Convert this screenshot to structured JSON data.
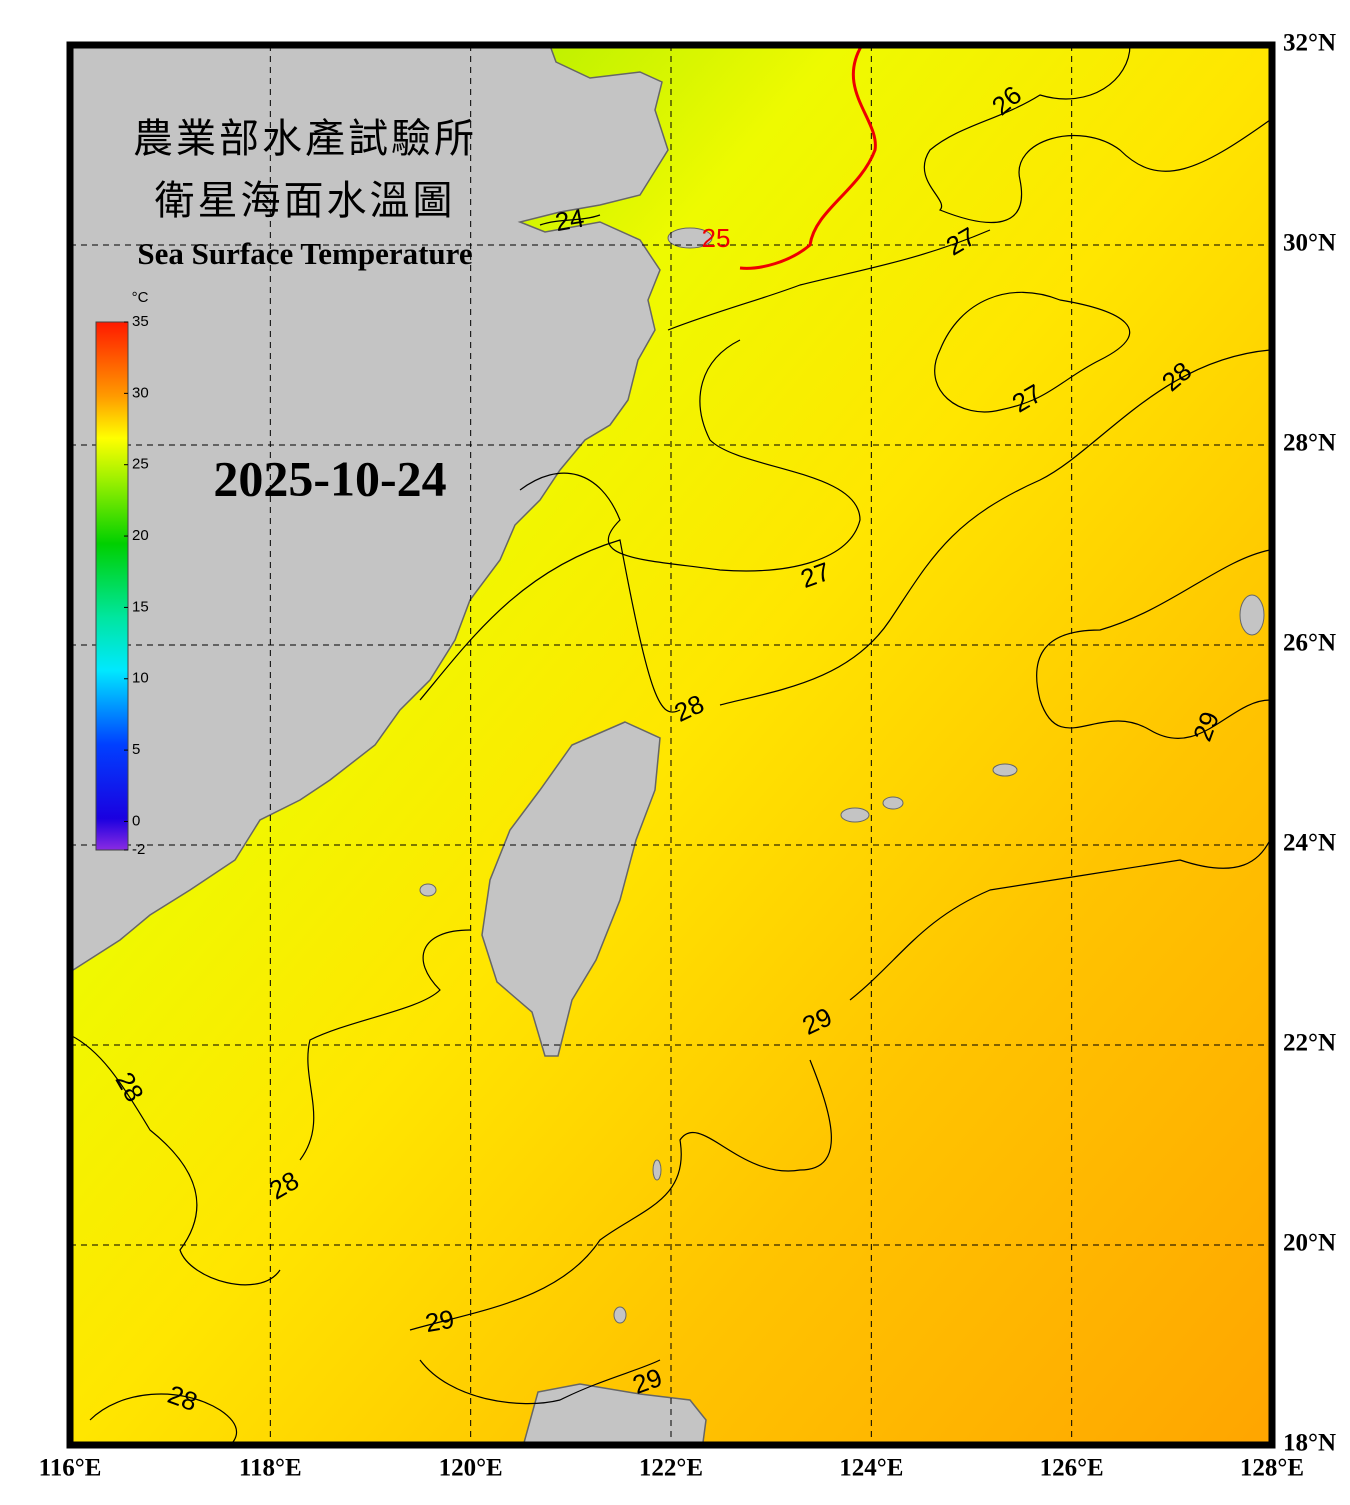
{
  "map": {
    "title_zh": [
      "農業部水產試驗所",
      "衛星海面水溫圖"
    ],
    "title_en": "Sea Surface Temperature",
    "date": "2025-10-24",
    "colorbar": {
      "unit": "°C",
      "range": [
        -2,
        35
      ],
      "ticks": [
        35,
        30,
        25,
        20,
        15,
        10,
        5,
        0,
        -2
      ]
    },
    "lon_range": [
      116,
      128
    ],
    "lat_range": [
      18,
      32
    ],
    "longitudes": [
      {
        "value": 116,
        "label": "116°E"
      },
      {
        "value": 118,
        "label": "118°E"
      },
      {
        "value": 120,
        "label": "120°E"
      },
      {
        "value": 122,
        "label": "122°E"
      },
      {
        "value": 124,
        "label": "124°E"
      },
      {
        "value": 126,
        "label": "126°E"
      },
      {
        "value": 128,
        "label": "128°E"
      }
    ],
    "latitudes": [
      {
        "value": 32,
        "label": "32°N"
      },
      {
        "value": 30,
        "label": "30°N"
      },
      {
        "value": 28,
        "label": "28°N"
      },
      {
        "value": 26,
        "label": "26°N"
      },
      {
        "value": 24,
        "label": "24°N"
      },
      {
        "value": 22,
        "label": "22°N"
      },
      {
        "value": 20,
        "label": "20°N"
      },
      {
        "value": 18,
        "label": "18°N"
      }
    ],
    "contour_labels": [
      24,
      25,
      26,
      27,
      27,
      27,
      28,
      28,
      29,
      29,
      28,
      28,
      29,
      29,
      28
    ]
  }
}
